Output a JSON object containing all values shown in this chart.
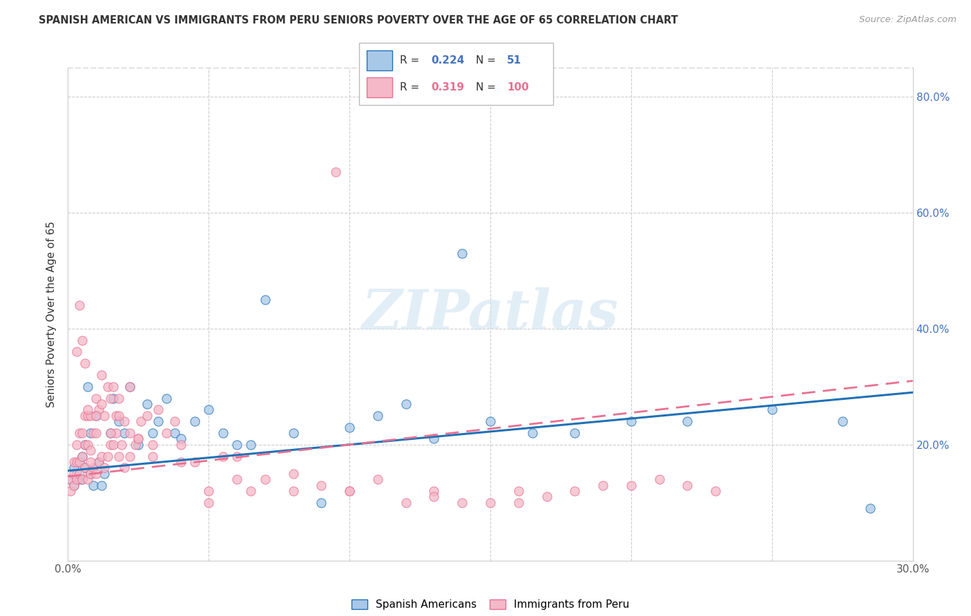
{
  "title": "SPANISH AMERICAN VS IMMIGRANTS FROM PERU SENIORS POVERTY OVER THE AGE OF 65 CORRELATION CHART",
  "source": "Source: ZipAtlas.com",
  "ylabel": "Seniors Poverty Over the Age of 65",
  "xlim": [
    0.0,
    0.3
  ],
  "ylim": [
    0.0,
    0.85
  ],
  "ytick_labels_right": [
    "80.0%",
    "60.0%",
    "40.0%",
    "20.0%"
  ],
  "ytick_positions_right": [
    0.8,
    0.6,
    0.4,
    0.2
  ],
  "color_blue": "#a8c8e8",
  "color_pink": "#f4b8c8",
  "color_blue_line": "#2171b5",
  "color_pink_line": "#e87090",
  "watermark": "ZIPatlas",
  "legend_label1": "Spanish Americans",
  "legend_label2": "Immigrants from Peru",
  "blue_scatter_x": [
    0.001,
    0.002,
    0.002,
    0.003,
    0.004,
    0.004,
    0.005,
    0.005,
    0.006,
    0.006,
    0.007,
    0.008,
    0.008,
    0.009,
    0.01,
    0.011,
    0.012,
    0.013,
    0.015,
    0.016,
    0.018,
    0.02,
    0.022,
    0.025,
    0.028,
    0.03,
    0.032,
    0.035,
    0.038,
    0.04,
    0.045,
    0.05,
    0.055,
    0.06,
    0.065,
    0.07,
    0.08,
    0.09,
    0.1,
    0.11,
    0.12,
    0.13,
    0.14,
    0.15,
    0.165,
    0.18,
    0.2,
    0.22,
    0.25,
    0.275,
    0.285
  ],
  "blue_scatter_y": [
    0.14,
    0.13,
    0.16,
    0.15,
    0.14,
    0.17,
    0.14,
    0.18,
    0.16,
    0.2,
    0.3,
    0.15,
    0.22,
    0.13,
    0.25,
    0.17,
    0.13,
    0.15,
    0.22,
    0.28,
    0.24,
    0.22,
    0.3,
    0.2,
    0.27,
    0.22,
    0.24,
    0.28,
    0.22,
    0.21,
    0.24,
    0.26,
    0.22,
    0.2,
    0.2,
    0.45,
    0.22,
    0.1,
    0.23,
    0.25,
    0.27,
    0.21,
    0.53,
    0.24,
    0.22,
    0.22,
    0.24,
    0.24,
    0.26,
    0.24,
    0.09
  ],
  "pink_scatter_x": [
    0.001,
    0.001,
    0.002,
    0.002,
    0.002,
    0.003,
    0.003,
    0.003,
    0.004,
    0.004,
    0.004,
    0.005,
    0.005,
    0.005,
    0.006,
    0.006,
    0.006,
    0.007,
    0.007,
    0.007,
    0.008,
    0.008,
    0.008,
    0.009,
    0.009,
    0.01,
    0.01,
    0.01,
    0.011,
    0.011,
    0.012,
    0.012,
    0.013,
    0.013,
    0.014,
    0.014,
    0.015,
    0.015,
    0.016,
    0.016,
    0.017,
    0.017,
    0.018,
    0.018,
    0.019,
    0.02,
    0.02,
    0.022,
    0.022,
    0.024,
    0.025,
    0.026,
    0.028,
    0.03,
    0.032,
    0.035,
    0.038,
    0.04,
    0.045,
    0.05,
    0.055,
    0.06,
    0.065,
    0.07,
    0.08,
    0.09,
    0.1,
    0.11,
    0.12,
    0.13,
    0.14,
    0.15,
    0.16,
    0.17,
    0.18,
    0.19,
    0.2,
    0.21,
    0.22,
    0.23,
    0.003,
    0.004,
    0.005,
    0.006,
    0.007,
    0.008,
    0.01,
    0.012,
    0.015,
    0.018,
    0.022,
    0.025,
    0.03,
    0.04,
    0.05,
    0.06,
    0.08,
    0.1,
    0.13,
    0.16
  ],
  "pink_scatter_y": [
    0.14,
    0.12,
    0.13,
    0.15,
    0.17,
    0.14,
    0.17,
    0.2,
    0.15,
    0.17,
    0.22,
    0.14,
    0.18,
    0.22,
    0.16,
    0.2,
    0.25,
    0.14,
    0.2,
    0.25,
    0.15,
    0.19,
    0.25,
    0.16,
    0.22,
    0.15,
    0.22,
    0.28,
    0.17,
    0.26,
    0.18,
    0.27,
    0.16,
    0.25,
    0.18,
    0.3,
    0.2,
    0.28,
    0.2,
    0.3,
    0.22,
    0.25,
    0.18,
    0.28,
    0.2,
    0.16,
    0.24,
    0.18,
    0.3,
    0.2,
    0.21,
    0.24,
    0.25,
    0.2,
    0.26,
    0.22,
    0.24,
    0.2,
    0.17,
    0.12,
    0.18,
    0.18,
    0.12,
    0.14,
    0.15,
    0.13,
    0.12,
    0.14,
    0.1,
    0.12,
    0.1,
    0.1,
    0.12,
    0.11,
    0.12,
    0.13,
    0.13,
    0.14,
    0.13,
    0.12,
    0.36,
    0.44,
    0.38,
    0.34,
    0.26,
    0.17,
    0.25,
    0.32,
    0.22,
    0.25,
    0.22,
    0.21,
    0.18,
    0.17,
    0.1,
    0.14,
    0.12,
    0.12,
    0.11,
    0.1
  ],
  "pink_outlier_x": [
    0.095
  ],
  "pink_outlier_y": [
    0.67
  ]
}
